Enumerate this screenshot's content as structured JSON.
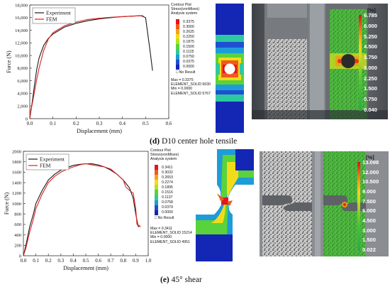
{
  "panel_d": {
    "caption_letter": "(d)",
    "caption_text": " D10 center hole tensile",
    "chart_data": {
      "type": "line",
      "xlabel": "Displacement (mm)",
      "ylabel": "Force (N)",
      "xlim": [
        0.0,
        0.6
      ],
      "ylim": [
        0,
        18000
      ],
      "x_ticks": [
        "0.0",
        "0.1",
        "0.2",
        "0.3",
        "0.4",
        "0.5",
        "0.6"
      ],
      "y_ticks": [
        "0",
        "2,000",
        "4,000",
        "6,000",
        "8,000",
        "10,000",
        "12,000",
        "14,000",
        "16,000",
        "18,000"
      ],
      "legend": "top-left",
      "series": [
        {
          "name": "Experiment",
          "color": "#1a1a1a",
          "x": [
            0.0,
            0.01,
            0.02,
            0.03,
            0.04,
            0.06,
            0.08,
            0.1,
            0.15,
            0.2,
            0.25,
            0.3,
            0.35,
            0.4,
            0.45,
            0.48,
            0.5,
            0.52,
            0.53
          ],
          "y": [
            0,
            2500,
            5200,
            7800,
            9600,
            11600,
            12700,
            13400,
            14500,
            15100,
            15500,
            15800,
            16000,
            16150,
            16250,
            16300,
            16000,
            10500,
            7600
          ]
        },
        {
          "name": "FEM",
          "color": "#e02020",
          "x": [
            0.0,
            0.005,
            0.01,
            0.02,
            0.03,
            0.04,
            0.06,
            0.08,
            0.1,
            0.15,
            0.2,
            0.25,
            0.3,
            0.35,
            0.4,
            0.45,
            0.49
          ],
          "y": [
            0,
            1500,
            2200,
            4200,
            6200,
            8000,
            10800,
            12600,
            13600,
            14700,
            15300,
            15700,
            15900,
            16050,
            16150,
            16250,
            16300
          ]
        }
      ]
    },
    "contour": {
      "title_lines": [
        "Contour Plot",
        "Stress(vonMises)",
        "Analysis system"
      ],
      "scale": [
        "0.3375",
        "0.3000",
        "0.2625",
        "0.2250",
        "0.1875",
        "0.1500",
        "0.1125",
        "0.0750",
        "0.0375",
        "0.0000"
      ],
      "no_result": "No Result",
      "footer_lines": [
        "Max = 0.3375",
        "ELEMENT_SOLID 6630",
        "Min = 0.0000",
        "ELEMENT_SOLID 5767"
      ]
    },
    "dic": {
      "unit": "[%]",
      "scale": [
        "6.785",
        "6.000",
        "5.250",
        "4.500",
        "3.750",
        "3.000",
        "2.250",
        "1.500",
        "0.750",
        "0.040"
      ]
    }
  },
  "panel_e": {
    "caption_letter": "(e)",
    "caption_text": " 45° shear",
    "chart_data": {
      "type": "line",
      "xlabel": "Displacement (mm)",
      "ylabel": "Force (N)",
      "xlim": [
        0.0,
        1.0
      ],
      "ylim": [
        0,
        2000
      ],
      "x_ticks": [
        "0.0",
        "0.1",
        "0.2",
        "0.3",
        "0.4",
        "0.5",
        "0.6",
        "0.7",
        "0.8",
        "0.9",
        "1.0"
      ],
      "y_ticks": [
        "0",
        "200",
        "400",
        "600",
        "800",
        "1000",
        "1200",
        "1400",
        "1600",
        "1800",
        "2000"
      ],
      "legend": "top-left",
      "series": [
        {
          "name": "Experiment",
          "color": "#1a1a1a",
          "x": [
            0.0,
            0.02,
            0.05,
            0.08,
            0.1,
            0.15,
            0.2,
            0.25,
            0.3,
            0.35,
            0.4,
            0.45,
            0.5,
            0.55,
            0.6,
            0.65,
            0.7,
            0.75,
            0.8,
            0.85,
            0.88,
            0.9,
            0.92,
            0.93
          ],
          "y": [
            0,
            200,
            550,
            800,
            1000,
            1250,
            1450,
            1560,
            1640,
            1690,
            1730,
            1750,
            1760,
            1760,
            1740,
            1700,
            1640,
            1560,
            1450,
            1300,
            1100,
            800,
            560,
            560
          ]
        },
        {
          "name": "FEM",
          "color": "#e02020",
          "x": [
            0.0,
            0.02,
            0.05,
            0.08,
            0.1,
            0.15,
            0.2,
            0.25,
            0.3,
            0.35,
            0.4,
            0.45,
            0.5,
            0.55,
            0.6,
            0.65,
            0.7,
            0.75,
            0.8,
            0.82,
            0.85,
            0.88,
            0.9,
            0.91,
            0.93,
            0.94
          ],
          "y": [
            0,
            150,
            450,
            700,
            900,
            1180,
            1400,
            1520,
            1600,
            1660,
            1700,
            1740,
            1765,
            1740,
            1720,
            1700,
            1660,
            1560,
            1450,
            1320,
            1250,
            1200,
            900,
            600,
            580,
            550
          ]
        }
      ]
    },
    "contour": {
      "title_lines": [
        "Contour Plot",
        "Stress(vonMises)",
        "Analysis system"
      ],
      "scale": [
        "0.3411",
        "0.3032",
        "0.2653",
        "0.2274",
        "0.1895",
        "0.1516",
        "0.1137",
        "0.0758",
        "0.0379",
        "0.0000"
      ],
      "no_result": "No Result",
      "footer_lines": [
        "Max = 0.3411",
        "ELEMENT_SOLID 15214",
        "Min = 0.0000",
        "ELEMENT_SOLID 4951"
      ]
    },
    "dic": {
      "unit": "[%]",
      "scale": [
        "13.098",
        "12.000",
        "10.500",
        "9.000",
        "7.500",
        "6.000",
        "4.500",
        "3.000",
        "1.500",
        "0.022"
      ]
    }
  },
  "colors": {
    "experiment": "#1a1a1a",
    "fem": "#e02020",
    "contour_scale": [
      "#e8141a",
      "#f05a1e",
      "#f6a21e",
      "#f2dc1a",
      "#b6e21e",
      "#5ad23c",
      "#2ec8a0",
      "#1e9cd8",
      "#1e50d2",
      "#1426b4"
    ],
    "dic_scale": [
      "#d2141e",
      "#ee5a14",
      "#f5a014",
      "#f5d214",
      "#c8dc1e",
      "#8cd228",
      "#5ac832",
      "#3cbe3c",
      "#32b446",
      "#28aa46"
    ]
  }
}
